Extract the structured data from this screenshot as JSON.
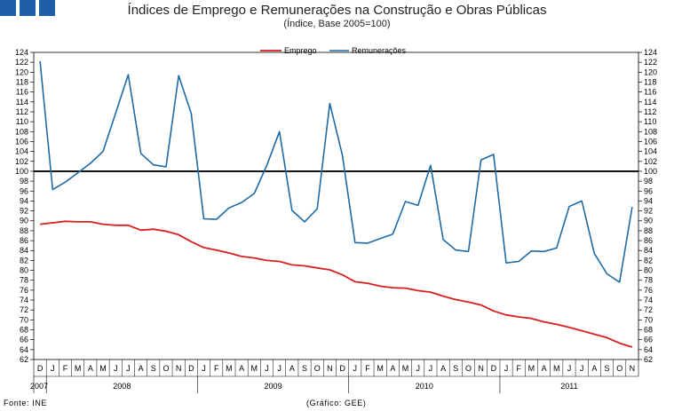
{
  "header": {
    "title": "Índices de Emprego e Remunerações na Construção e Obras Públicas",
    "subtitle": "(Índice, Base 2005=100)"
  },
  "footer": {
    "source": "Fonte: INE",
    "credit": "(Gráfico: GEE)"
  },
  "colors": {
    "emprego": "#d81e1e",
    "remuneracoes": "#1f6aa5",
    "logo": "#1f5fa8",
    "reference": "#000000"
  },
  "chart_data": {
    "type": "line",
    "title": "Índices de Emprego e Remunerações na Construção e Obras Públicas",
    "subtitle": "(Índice, Base 2005=100)",
    "xlabel": "",
    "ylabel": "",
    "ylim": [
      62,
      124
    ],
    "y_ticks": [
      62,
      64,
      66,
      68,
      70,
      72,
      74,
      76,
      78,
      80,
      82,
      84,
      86,
      88,
      90,
      92,
      94,
      96,
      98,
      100,
      102,
      104,
      106,
      108,
      110,
      112,
      114,
      116,
      118,
      120,
      122,
      124
    ],
    "grid": false,
    "legend_position": "top-center",
    "reference_line": 100,
    "months": [
      "D",
      "J",
      "F",
      "M",
      "A",
      "M",
      "J",
      "J",
      "A",
      "S",
      "O",
      "N",
      "D",
      "J",
      "F",
      "M",
      "A",
      "M",
      "J",
      "J",
      "A",
      "S",
      "O",
      "N",
      "D",
      "J",
      "F",
      "M",
      "A",
      "M",
      "J",
      "J",
      "A",
      "S",
      "O",
      "N",
      "D",
      "J",
      "F",
      "M",
      "A",
      "M",
      "J",
      "J",
      "A",
      "S",
      "O",
      "N"
    ],
    "years": [
      {
        "label": "2007",
        "start": 0,
        "end": 0
      },
      {
        "label": "2008",
        "start": 1,
        "end": 12
      },
      {
        "label": "2009",
        "start": 13,
        "end": 24
      },
      {
        "label": "2010",
        "start": 25,
        "end": 36
      },
      {
        "label": "2011",
        "start": 37,
        "end": 47
      }
    ],
    "series": [
      {
        "name": "Emprego",
        "color": "#d81e1e",
        "values": [
          89.3,
          89.6,
          89.9,
          89.8,
          89.8,
          89.3,
          89.1,
          89.1,
          88.1,
          88.3,
          87.9,
          87.2,
          85.8,
          84.6,
          84.1,
          83.5,
          82.8,
          82.5,
          82.0,
          81.8,
          81.1,
          80.9,
          80.5,
          80.1,
          79.1,
          77.7,
          77.4,
          76.8,
          76.5,
          76.4,
          75.9,
          75.6,
          74.8,
          74.1,
          73.6,
          73.0,
          71.8,
          71.0,
          70.6,
          70.3,
          69.6,
          69.1,
          68.5,
          67.8,
          67.1,
          66.4,
          65.3,
          64.5
        ]
      },
      {
        "name": "Remunerações",
        "color": "#1f6aa5",
        "values": [
          122.2,
          96.3,
          97.8,
          99.7,
          101.6,
          104.0,
          111.7,
          119.5,
          103.6,
          101.3,
          100.9,
          119.3,
          111.7,
          90.4,
          90.3,
          92.6,
          93.7,
          95.5,
          101.2,
          108.0,
          92.1,
          89.8,
          92.4,
          113.7,
          103.2,
          85.6,
          85.5,
          86.4,
          87.3,
          93.9,
          93.1,
          101.2,
          86.2,
          84.1,
          83.8,
          102.3,
          103.4,
          81.5,
          81.8,
          83.9,
          83.8,
          84.5,
          92.9,
          94.0,
          83.4,
          79.3,
          77.6,
          92.8
        ]
      }
    ]
  }
}
